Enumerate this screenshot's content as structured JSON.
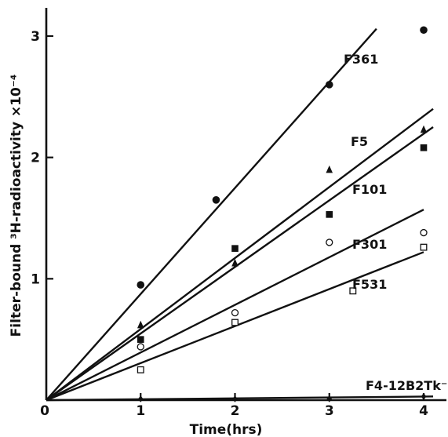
{
  "chart_data": {
    "type": "scatter",
    "xlabel": "Time(hrs)",
    "ylabel": "Filter-bound ³H-radioactivity ×10⁻⁴",
    "xlim": [
      0,
      4.1
    ],
    "ylim": [
      0,
      3.2
    ],
    "x_ticks": [
      "0",
      "1",
      "2",
      "3",
      "4"
    ],
    "y_ticks": [
      "1",
      "2",
      "3"
    ],
    "series": [
      {
        "name": "F361",
        "marker": "filled-circle",
        "points": [
          [
            1,
            0.95
          ],
          [
            1.8,
            1.65
          ],
          [
            3,
            2.6
          ],
          [
            4,
            3.05
          ]
        ],
        "fit_line": [
          [
            0,
            0
          ],
          [
            3.5,
            3.06
          ]
        ]
      },
      {
        "name": "F5",
        "marker": "filled-triangle",
        "points": [
          [
            1,
            0.62
          ],
          [
            2,
            1.13
          ],
          [
            3,
            1.9
          ],
          [
            4,
            2.23
          ]
        ],
        "fit_line": [
          [
            0,
            0
          ],
          [
            4.1,
            2.4
          ]
        ]
      },
      {
        "name": "F101",
        "marker": "filled-square",
        "points": [
          [
            1,
            0.5
          ],
          [
            2,
            1.25
          ],
          [
            3,
            1.53
          ],
          [
            4,
            2.08
          ]
        ],
        "fit_line": [
          [
            0,
            0
          ],
          [
            4.1,
            2.25
          ]
        ]
      },
      {
        "name": "F301",
        "marker": "open-circle",
        "points": [
          [
            1,
            0.44
          ],
          [
            2,
            0.72
          ],
          [
            3,
            1.3
          ],
          [
            4,
            1.38
          ]
        ],
        "fit_line": [
          [
            0,
            0
          ],
          [
            4.0,
            1.57
          ]
        ]
      },
      {
        "name": "F531",
        "marker": "open-square",
        "points": [
          [
            1,
            0.25
          ],
          [
            2,
            0.64
          ],
          [
            3.25,
            0.9
          ],
          [
            4,
            1.26
          ]
        ],
        "fit_line": [
          [
            0,
            0
          ],
          [
            4.0,
            1.22
          ]
        ]
      },
      {
        "name": "F4-12B2Tk⁻",
        "marker": "filled-diamond",
        "points": [
          [
            1,
            0.01
          ],
          [
            2,
            0.01
          ],
          [
            3,
            0.01
          ],
          [
            4,
            0.03
          ]
        ],
        "fit_line": [
          [
            0,
            0
          ],
          [
            4.1,
            0.03
          ]
        ]
      }
    ]
  }
}
